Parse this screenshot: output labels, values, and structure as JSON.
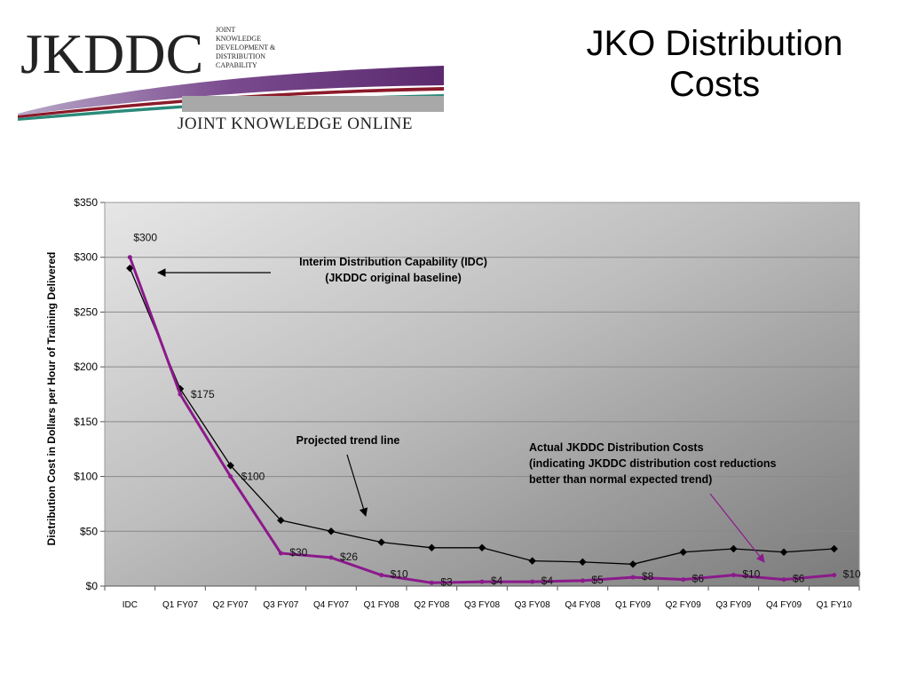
{
  "slide": {
    "title_line1": "JKO Distribution",
    "title_line2": "Costs"
  },
  "logo": {
    "wordmark": "JKDDC",
    "tagline_lines": [
      "JOINT",
      "KNOWLEDGE",
      "DEVELOPMENT &",
      "DISTRIBUTION",
      "CAPABILITY"
    ],
    "subtitle": "JOINT KNOWLEDGE ONLINE",
    "swoosh_colors": [
      "#5b2a6e",
      "#8b1a2a",
      "#2a8a7a",
      "#9a9a9a"
    ]
  },
  "chart_data": {
    "type": "line",
    "ylabel": "Distribution Cost in Dollars per Hour of Training Delivered",
    "xlabel": "",
    "ylim": [
      0,
      350
    ],
    "yticks": [
      0,
      50,
      100,
      150,
      200,
      250,
      300,
      350
    ],
    "ytick_labels": [
      "$0",
      "$50",
      "$100",
      "$150",
      "$200",
      "$250",
      "$300",
      "$350"
    ],
    "categories": [
      "IDC",
      "Q1 FY07",
      "Q2 FY07",
      "Q3 FY07",
      "Q4 FY07",
      "Q1 FY08",
      "Q2 FY08",
      "Q3 FY08",
      "Q3 FY08",
      "Q4 FY08",
      "Q1 FY09",
      "Q2 FY09",
      "Q3 FY09",
      "Q4 FY09",
      "Q1 FY10"
    ],
    "grid": true,
    "series": [
      {
        "role": "projected",
        "color": "#000000",
        "values": [
          290,
          180,
          110,
          60,
          50,
          40,
          35,
          35,
          23,
          22,
          20,
          31,
          34,
          31,
          34
        ]
      },
      {
        "role": "actual",
        "color": "#8b1a8b",
        "values": [
          300,
          175,
          100,
          30,
          26,
          10,
          3,
          4,
          4,
          5,
          8,
          6,
          10,
          6,
          10
        ],
        "data_labels": [
          "$300",
          "$175",
          "$100",
          "$30",
          "$26",
          "$10",
          "$3",
          "$4",
          "$4",
          "$5",
          "$8",
          "$6",
          "$10",
          "$6",
          "$10"
        ]
      }
    ],
    "annotations": {
      "idc_line1": "Interim Distribution Capability (IDC)",
      "idc_line2": "(JKDDC original baseline)",
      "projected": "Projected trend line",
      "actual_line1": "Actual JKDDC Distribution Costs",
      "actual_line2": "(indicating JKDDC distribution cost reductions",
      "actual_line3": "better than normal expected trend)"
    }
  }
}
